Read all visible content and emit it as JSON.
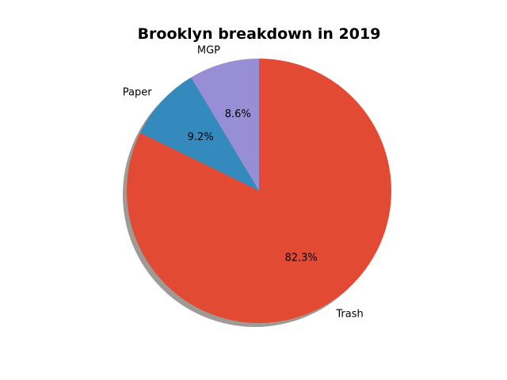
{
  "chart_data": {
    "type": "pie",
    "title": "Brooklyn breakdown in 2019",
    "slices": [
      {
        "label": "MGP",
        "value": 8.6,
        "pct_label": "8.6%",
        "color": "#988ED5"
      },
      {
        "label": "Paper",
        "value": 9.2,
        "pct_label": "9.2%",
        "color": "#348ABD"
      },
      {
        "label": "Trash",
        "value": 82.3,
        "pct_label": "82.3%",
        "color": "#E24A33"
      }
    ],
    "start_angle_deg": 90,
    "direction": "counterclockwise",
    "shadow": true,
    "shadow_color": "#A09A95"
  }
}
